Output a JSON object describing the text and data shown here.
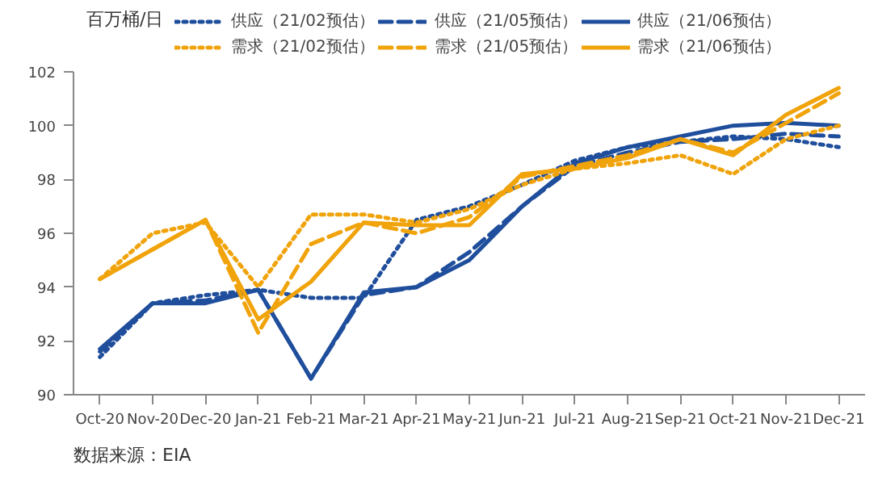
{
  "chart_data": {
    "type": "line",
    "ylabel": "百万桶/日",
    "categories": [
      "Oct-20",
      "Nov-20",
      "Dec-20",
      "Jan-21",
      "Feb-21",
      "Mar-21",
      "Apr-21",
      "May-21",
      "Jun-21",
      "Jul-21",
      "Aug-21",
      "Sep-21",
      "Oct-21",
      "Nov-21",
      "Dec-21"
    ],
    "series": [
      {
        "name": "供应（21/02预估）",
        "color": "#1f4e9c",
        "line_style": "dotted",
        "values": [
          91.4,
          93.4,
          93.7,
          93.9,
          93.6,
          93.6,
          96.5,
          97.0,
          97.8,
          98.7,
          99.2,
          99.4,
          99.6,
          99.5,
          99.2
        ]
      },
      {
        "name": "供应（21/05预估）",
        "color": "#1f4e9c",
        "line_style": "dashed",
        "values": [
          91.6,
          93.4,
          93.5,
          93.9,
          90.6,
          93.7,
          94.0,
          95.3,
          97.0,
          98.5,
          99.0,
          99.4,
          99.5,
          99.7,
          99.6
        ]
      },
      {
        "name": "供应（21/06预估）",
        "color": "#1f4e9c",
        "line_style": "solid",
        "values": [
          91.7,
          93.4,
          93.4,
          93.9,
          90.6,
          93.8,
          94.0,
          95.0,
          97.0,
          98.6,
          99.2,
          99.6,
          100.0,
          100.1,
          100.0
        ]
      },
      {
        "name": "需求（21/02预估）",
        "color": "#f0a30a",
        "line_style": "dotted",
        "values": [
          94.3,
          96.0,
          96.4,
          94.0,
          96.7,
          96.7,
          96.4,
          96.9,
          97.8,
          98.4,
          98.6,
          98.9,
          98.2,
          99.5,
          100.0
        ]
      },
      {
        "name": "需求（21/05预估）",
        "color": "#f0a30a",
        "line_style": "dashed",
        "values": [
          94.3,
          95.4,
          96.5,
          92.3,
          95.6,
          96.4,
          96.0,
          96.6,
          98.1,
          98.5,
          98.9,
          99.5,
          99.0,
          100.1,
          101.2
        ]
      },
      {
        "name": "需求（21/06预估）",
        "color": "#f0a30a",
        "line_style": "solid",
        "values": [
          94.3,
          95.4,
          96.5,
          92.8,
          94.2,
          96.4,
          96.3,
          96.3,
          98.2,
          98.4,
          98.8,
          99.5,
          98.9,
          100.4,
          101.4
        ]
      }
    ],
    "ylim": [
      90,
      102
    ],
    "yticks": [
      90,
      92,
      94,
      96,
      98,
      100,
      102
    ],
    "grid": false,
    "legend": "top",
    "annotations": [
      "数据来源：EIA"
    ]
  }
}
